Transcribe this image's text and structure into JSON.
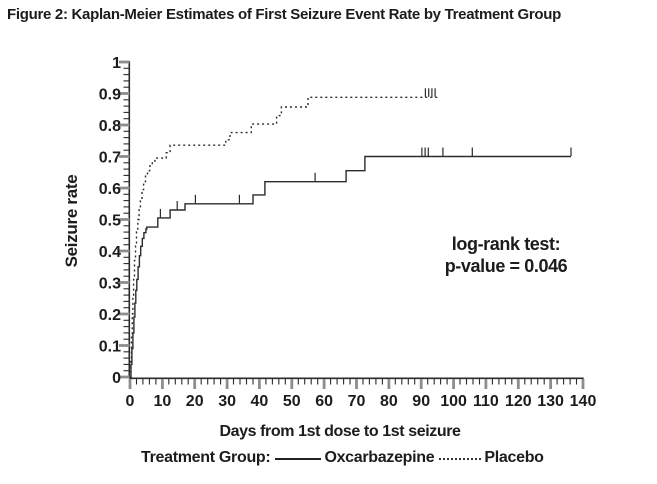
{
  "title": "Figure 2: Kaplan-Meier Estimates of First Seizure Event Rate by Treatment Group",
  "chart_data": {
    "type": "line",
    "subtype": "kaplan-meier-step",
    "xlabel": "Days from 1st dose to 1st seizure",
    "ylabel": "Seizure rate",
    "xlim": [
      0,
      140
    ],
    "ylim": [
      0,
      1
    ],
    "grid": false,
    "x_ticks": [
      0,
      10,
      20,
      30,
      40,
      50,
      60,
      70,
      80,
      90,
      100,
      110,
      120,
      130,
      140
    ],
    "x_tick_labels": [
      "0",
      "10",
      "20",
      "30",
      "40",
      "50",
      "60",
      "70",
      "80",
      "90",
      "100",
      "110",
      "120",
      "130",
      "140"
    ],
    "x_minor_step": 2,
    "y_ticks": [
      0,
      0.1,
      0.2,
      0.3,
      0.4,
      0.5,
      0.6,
      0.7,
      0.8,
      0.9,
      1
    ],
    "y_tick_labels": [
      "0",
      "0.1",
      "0.2",
      "0.3",
      "0.4",
      "0.5",
      "0.6",
      "0.7",
      "0.8",
      "0.9",
      "1"
    ],
    "y_minor_step": 0.02,
    "annotation": {
      "line1": "log-rank test:",
      "line2": "p-value = 0.046"
    },
    "legend_label": "Treatment Group:",
    "legend_position": "bottom",
    "line_color": "#2b2b2b",
    "series": [
      {
        "name": "Oxcarbazepine",
        "style": "solid",
        "points": [
          [
            0,
            0
          ],
          [
            0.3,
            0.04
          ],
          [
            0.6,
            0.09
          ],
          [
            0.9,
            0.14
          ],
          [
            1.2,
            0.19
          ],
          [
            1.5,
            0.235
          ],
          [
            1.8,
            0.275
          ],
          [
            2.1,
            0.31
          ],
          [
            2.5,
            0.35
          ],
          [
            2.9,
            0.385
          ],
          [
            3.3,
            0.415
          ],
          [
            3.8,
            0.44
          ],
          [
            4.3,
            0.458
          ],
          [
            4.9,
            0.47
          ],
          [
            5.2,
            0.476
          ],
          [
            8.6,
            0.505
          ],
          [
            12.4,
            0.53
          ],
          [
            17.0,
            0.55
          ],
          [
            38.0,
            0.578
          ],
          [
            41.7,
            0.62
          ],
          [
            66.8,
            0.655
          ],
          [
            72.6,
            0.7
          ]
        ],
        "end_x": 136.3,
        "censor_ticks": [
          [
            9.4,
            0.505
          ],
          [
            14.6,
            0.53
          ],
          [
            20.2,
            0.55
          ],
          [
            33.8,
            0.55
          ],
          [
            57.2,
            0.62
          ],
          [
            90.2,
            0.7
          ],
          [
            91.2,
            0.7
          ],
          [
            92.2,
            0.7
          ],
          [
            96.7,
            0.7
          ],
          [
            105.8,
            0.7
          ],
          [
            136.3,
            0.7
          ]
        ]
      },
      {
        "name": "Placebo",
        "style": "dotted",
        "points": [
          [
            0,
            0
          ],
          [
            0.25,
            0.06
          ],
          [
            0.45,
            0.13
          ],
          [
            0.7,
            0.2
          ],
          [
            0.9,
            0.26
          ],
          [
            1.1,
            0.31
          ],
          [
            1.4,
            0.37
          ],
          [
            1.7,
            0.42
          ],
          [
            2.0,
            0.46
          ],
          [
            2.4,
            0.5
          ],
          [
            2.8,
            0.535
          ],
          [
            3.2,
            0.565
          ],
          [
            3.7,
            0.595
          ],
          [
            4.2,
            0.62
          ],
          [
            4.8,
            0.64
          ],
          [
            5.4,
            0.655
          ],
          [
            6.1,
            0.67
          ],
          [
            6.9,
            0.682
          ],
          [
            7.7,
            0.695
          ],
          [
            11.2,
            0.712
          ],
          [
            12.4,
            0.736
          ],
          [
            29.6,
            0.753
          ],
          [
            30.9,
            0.776
          ],
          [
            37.5,
            0.803
          ],
          [
            45.3,
            0.83
          ],
          [
            46.8,
            0.857
          ],
          [
            55.0,
            0.888
          ]
        ],
        "end_x": 95.5,
        "censor_ticks": [
          [
            91.3,
            0.888
          ],
          [
            92.3,
            0.888
          ],
          [
            93.3,
            0.888
          ],
          [
            94.3,
            0.888
          ]
        ]
      }
    ]
  }
}
